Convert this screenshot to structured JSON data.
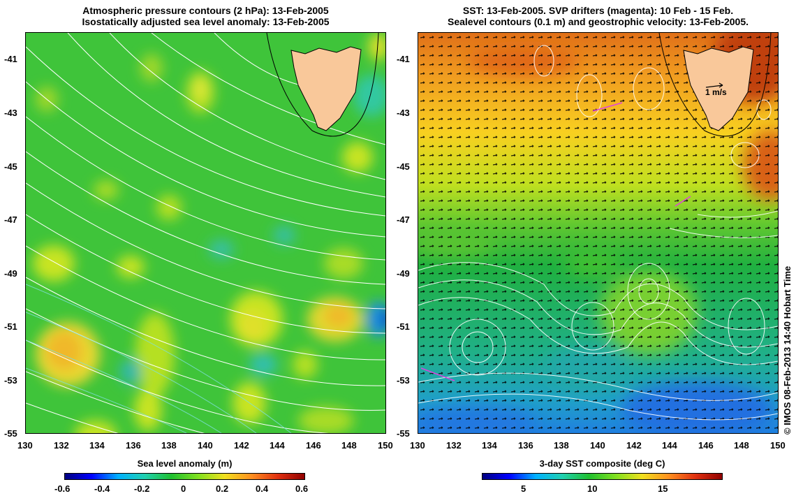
{
  "left_panel": {
    "title_line1": "Atmospheric pressure contours (2 hPa): 13-Feb-2005",
    "title_line2": "Isostatically adjusted sea level anomaly: 13-Feb-2005",
    "lat_ticks": [
      "-41",
      "-43",
      "-45",
      "-47",
      "-49",
      "-51",
      "-53",
      "-55"
    ],
    "lon_ticks": [
      "130",
      "132",
      "134",
      "136",
      "138",
      "140",
      "142",
      "144",
      "146",
      "148",
      "150"
    ],
    "colorbar": {
      "title": "Sea level anomaly (m)",
      "ticks": [
        "-0.6",
        "-0.4",
        "-0.2",
        "0",
        "0.2",
        "0.4",
        "0.6"
      ],
      "min": -0.6,
      "max": 0.6
    }
  },
  "right_panel": {
    "title_line1": "SST: 13-Feb-2005. SVP drifters (magenta): 10 Feb - 15 Feb.",
    "title_line2": "Sealevel contours (0.1 m) and geostrophic velocity: 13-Feb-2005.",
    "lat_ticks": [
      "-41",
      "-43",
      "-45",
      "-47",
      "-49",
      "-51",
      "-53",
      "-55"
    ],
    "lon_ticks": [
      "130",
      "132",
      "134",
      "136",
      "138",
      "140",
      "142",
      "144",
      "146",
      "148",
      "150"
    ],
    "velocity_scale_label": "1 m/s",
    "colorbar": {
      "title": "3-day SST composite (deg C)",
      "ticks": [
        "5",
        "10",
        "15"
      ],
      "min": 2,
      "max": 20
    }
  },
  "credit": "© IMOS 08-Feb-2013 14:40 Hobart Time",
  "colors": {
    "land": "#f9c89a",
    "contour": "#ffffff",
    "drifter": "#e040e0"
  }
}
